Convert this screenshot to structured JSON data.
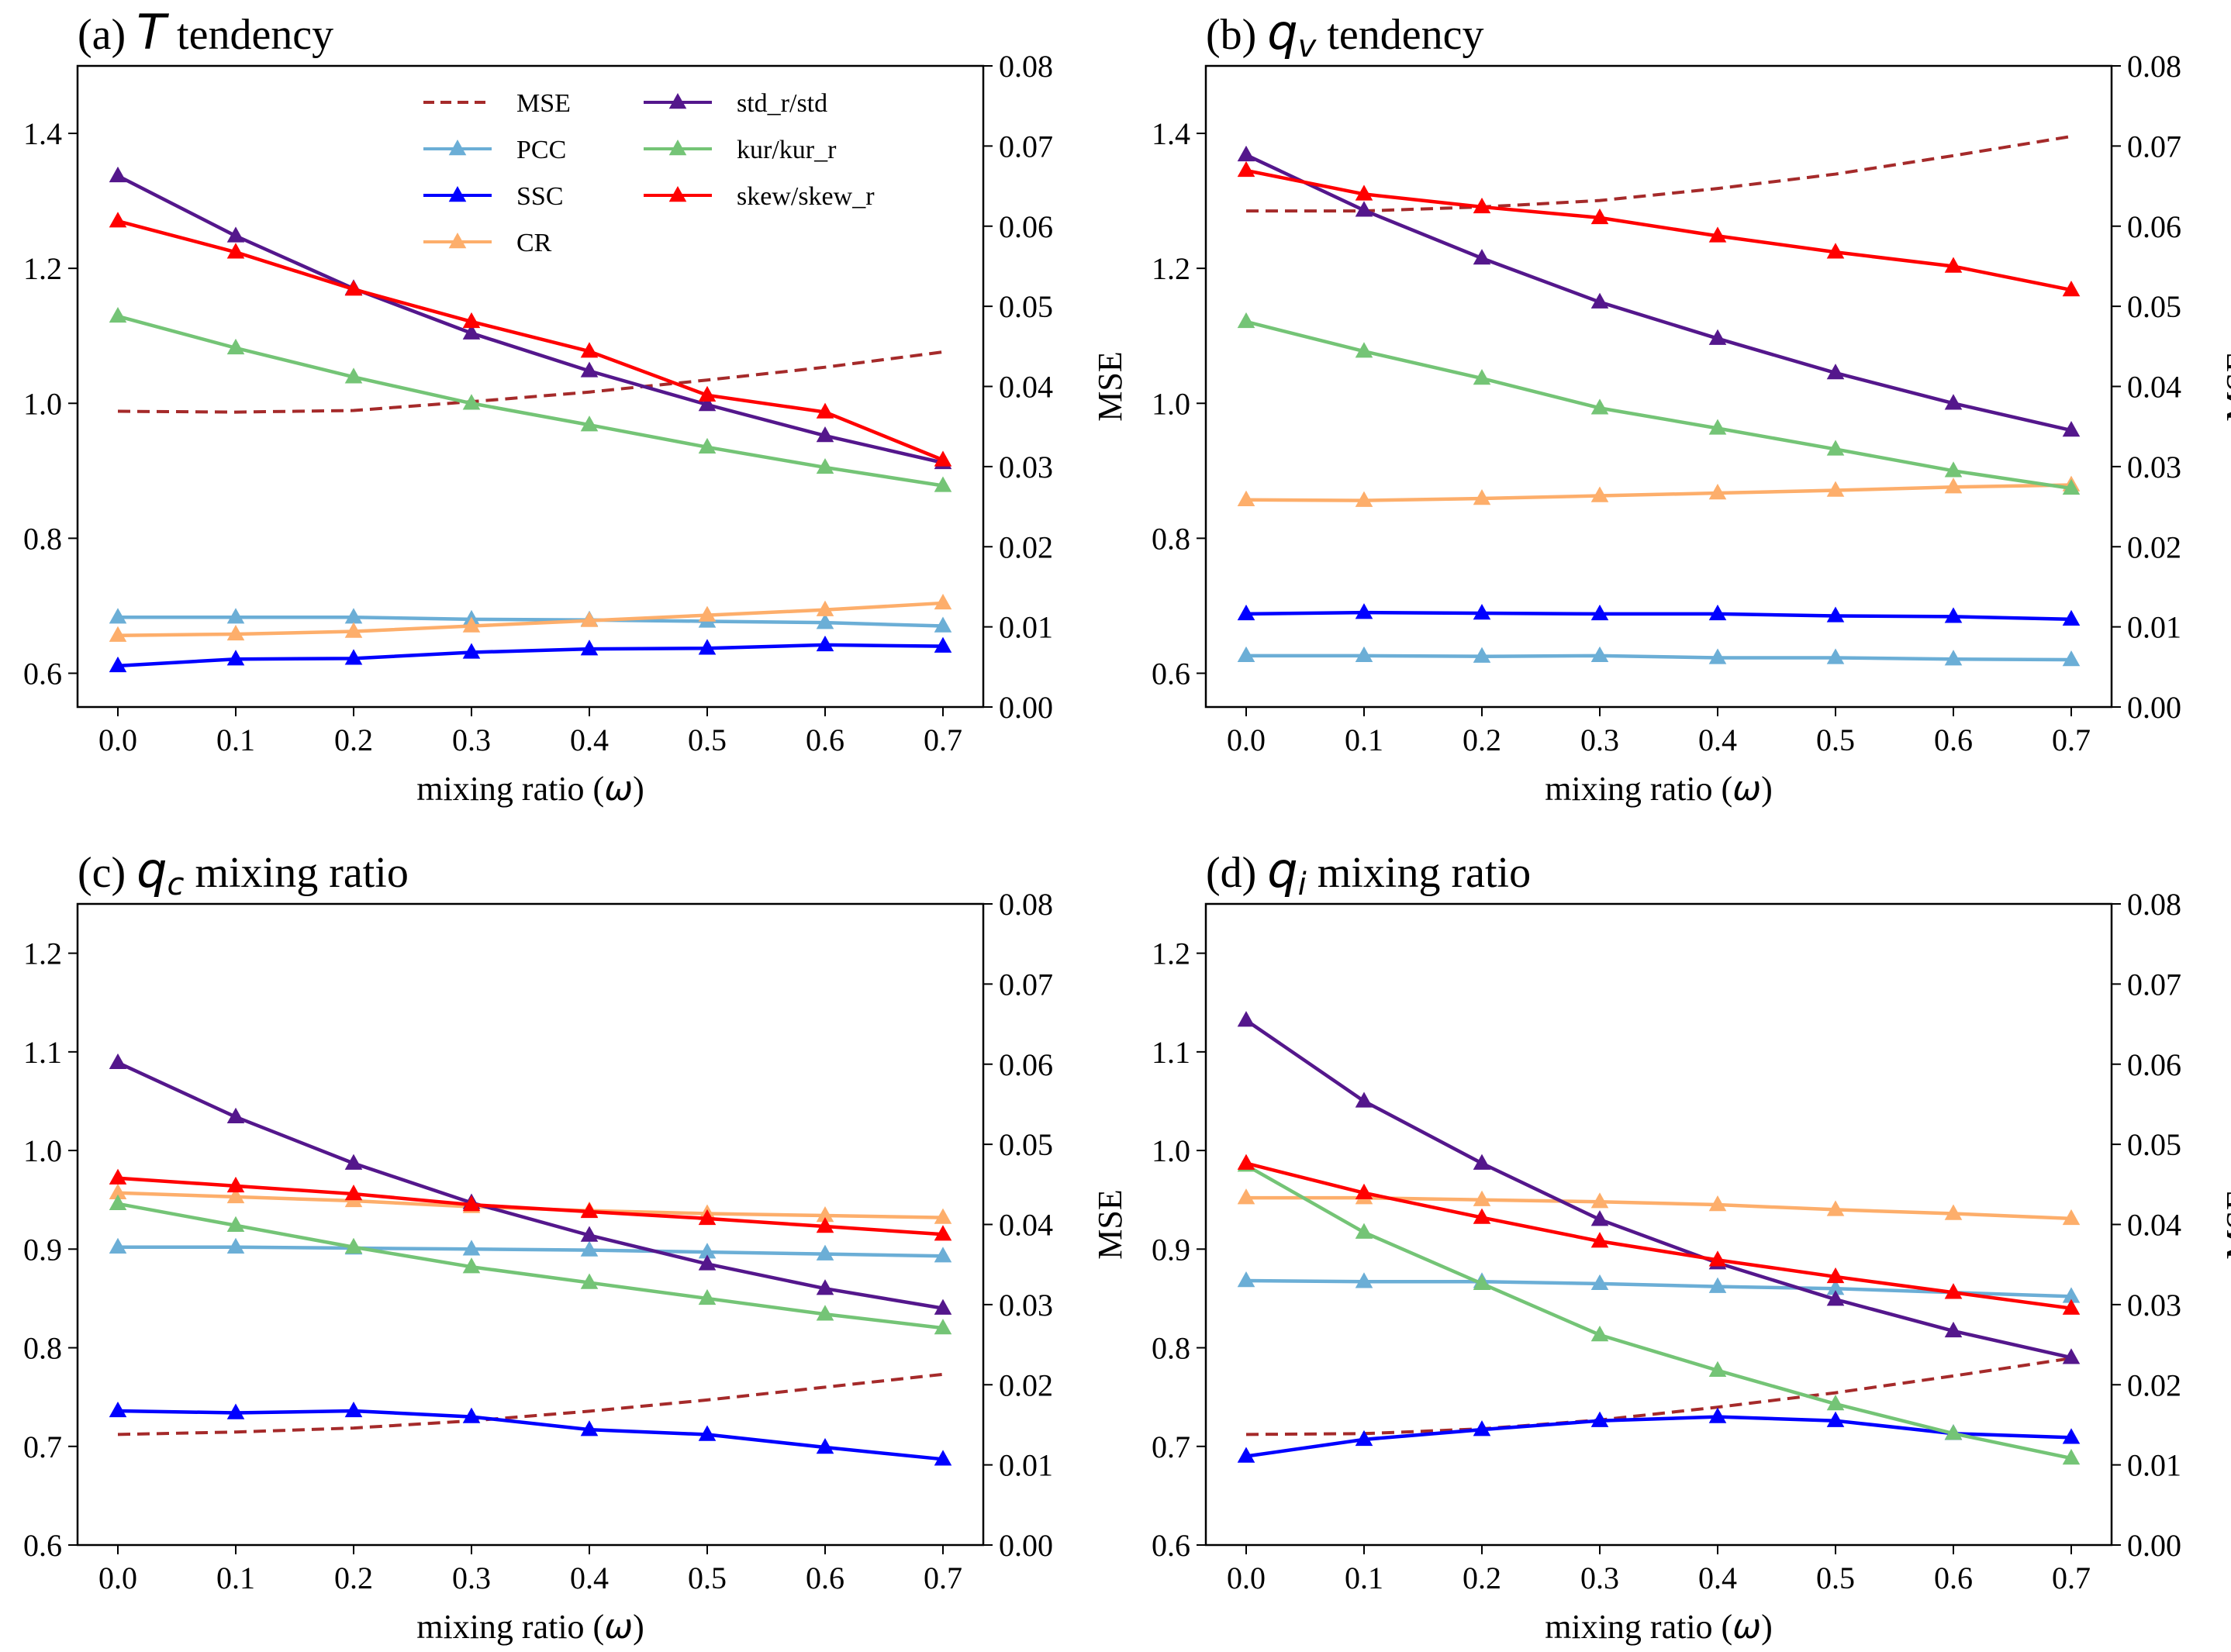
{
  "figure": {
    "legend": [
      {
        "name": "MSE",
        "color": "#a52a2a",
        "dashed": true,
        "marker": false
      },
      {
        "name": "PCC",
        "color": "#6baed6",
        "dashed": false,
        "marker": true
      },
      {
        "name": "SSC",
        "color": "#0000ff",
        "dashed": false,
        "marker": true
      },
      {
        "name": "CR",
        "color": "#fdae6b",
        "dashed": false,
        "marker": true
      },
      {
        "name": "std_r/std",
        "color": "#54178c",
        "dashed": false,
        "marker": true
      },
      {
        "name": "kur/kur_r",
        "color": "#74c476",
        "dashed": false,
        "marker": true
      },
      {
        "name": "skew/skew_r",
        "color": "#ff0000",
        "dashed": false,
        "marker": true
      }
    ]
  },
  "chart_data": [
    {
      "type": "line",
      "panel": "a",
      "title_prefix": "(a) ",
      "title_var": "T",
      "title_sub": "",
      "title_suffix": " tendency",
      "xlabel": "mixing ratio (",
      "xlabel_symbol": "ω",
      "xlabel_close": ")",
      "ylabel_right": "MSE",
      "x": [
        0.0,
        0.1,
        0.2,
        0.3,
        0.4,
        0.5,
        0.6,
        0.7
      ],
      "xticks": [
        "0.0",
        "0.1",
        "0.2",
        "0.3",
        "0.4",
        "0.5",
        "0.6",
        "0.7"
      ],
      "ylim": [
        0.55,
        1.5
      ],
      "yticks": [
        0.6,
        0.8,
        1.0,
        1.2,
        1.4
      ],
      "ytick_labels": [
        "0.6",
        "0.8",
        "1.0",
        "1.2",
        "1.4"
      ],
      "y2lim": [
        0.0,
        0.08
      ],
      "y2ticks": [
        0.0,
        0.01,
        0.02,
        0.03,
        0.04,
        0.05,
        0.06,
        0.07,
        0.08
      ],
      "y2tick_labels": [
        "0.00",
        "0.01",
        "0.02",
        "0.03",
        "0.04",
        "0.05",
        "0.06",
        "0.07",
        "0.08"
      ],
      "show_legend": true,
      "series": [
        {
          "name": "MSE",
          "axis": "right",
          "values": [
            0.0369,
            0.0368,
            0.037,
            0.0381,
            0.0393,
            0.0408,
            0.0424,
            0.0443
          ]
        },
        {
          "name": "PCC",
          "axis": "left",
          "values": [
            0.683,
            0.683,
            0.683,
            0.68,
            0.679,
            0.677,
            0.675,
            0.67
          ]
        },
        {
          "name": "SSC",
          "axis": "left",
          "values": [
            0.611,
            0.621,
            0.622,
            0.631,
            0.636,
            0.637,
            0.642,
            0.64
          ]
        },
        {
          "name": "CR",
          "axis": "left",
          "values": [
            0.656,
            0.658,
            0.662,
            0.67,
            0.678,
            0.686,
            0.694,
            0.704
          ]
        },
        {
          "name": "std_r/std",
          "axis": "left",
          "values": [
            1.337,
            1.248,
            1.17,
            1.104,
            1.048,
            0.998,
            0.952,
            0.912
          ]
        },
        {
          "name": "kur/kur_r",
          "axis": "left",
          "values": [
            1.129,
            1.082,
            1.039,
            1.0,
            0.968,
            0.935,
            0.905,
            0.878
          ]
        },
        {
          "name": "skew/skew_r",
          "axis": "left",
          "values": [
            1.27,
            1.224,
            1.169,
            1.121,
            1.077,
            1.012,
            0.987,
            0.916
          ]
        }
      ]
    },
    {
      "type": "line",
      "panel": "b",
      "title_prefix": "(b) ",
      "title_var": "q",
      "title_sub": "v",
      "title_suffix": " tendency",
      "xlabel": "mixing ratio (",
      "xlabel_symbol": "ω",
      "xlabel_close": ")",
      "ylabel_right": "MSE",
      "x": [
        0.0,
        0.1,
        0.2,
        0.3,
        0.4,
        0.5,
        0.6,
        0.7
      ],
      "xticks": [
        "0.0",
        "0.1",
        "0.2",
        "0.3",
        "0.4",
        "0.5",
        "0.6",
        "0.7"
      ],
      "ylim": [
        0.55,
        1.5
      ],
      "yticks": [
        0.6,
        0.8,
        1.0,
        1.2,
        1.4
      ],
      "ytick_labels": [
        "0.6",
        "0.8",
        "1.0",
        "1.2",
        "1.4"
      ],
      "y2lim": [
        0.0,
        0.08
      ],
      "y2ticks": [
        0.0,
        0.01,
        0.02,
        0.03,
        0.04,
        0.05,
        0.06,
        0.07,
        0.08
      ],
      "y2tick_labels": [
        "0.00",
        "0.01",
        "0.02",
        "0.03",
        "0.04",
        "0.05",
        "0.06",
        "0.07",
        "0.08"
      ],
      "show_legend": false,
      "series": [
        {
          "name": "MSE",
          "axis": "right",
          "values": [
            0.0619,
            0.0619,
            0.0624,
            0.0632,
            0.0647,
            0.0665,
            0.0688,
            0.0712
          ]
        },
        {
          "name": "PCC",
          "axis": "left",
          "values": [
            0.626,
            0.626,
            0.625,
            0.626,
            0.623,
            0.623,
            0.621,
            0.62
          ]
        },
        {
          "name": "SSC",
          "axis": "left",
          "values": [
            0.688,
            0.69,
            0.689,
            0.688,
            0.688,
            0.685,
            0.684,
            0.68
          ]
        },
        {
          "name": "CR",
          "axis": "left",
          "values": [
            0.857,
            0.856,
            0.859,
            0.863,
            0.867,
            0.871,
            0.876,
            0.879
          ]
        },
        {
          "name": "std_r/std",
          "axis": "left",
          "values": [
            1.368,
            1.286,
            1.215,
            1.15,
            1.096,
            1.045,
            1.0,
            0.96
          ]
        },
        {
          "name": "kur/kur_r",
          "axis": "left",
          "values": [
            1.121,
            1.077,
            1.037,
            0.993,
            0.963,
            0.932,
            0.9,
            0.874
          ]
        },
        {
          "name": "skew/skew_r",
          "axis": "left",
          "values": [
            1.345,
            1.31,
            1.291,
            1.275,
            1.248,
            1.224,
            1.203,
            1.168
          ]
        }
      ]
    },
    {
      "type": "line",
      "panel": "c",
      "title_prefix": "(c) ",
      "title_var": "q",
      "title_sub": "c",
      "title_suffix": " mixing ratio",
      "xlabel": "mixing ratio (",
      "xlabel_symbol": "ω",
      "xlabel_close": ")",
      "ylabel_right": "MSE",
      "x": [
        0.0,
        0.1,
        0.2,
        0.3,
        0.4,
        0.5,
        0.6,
        0.7
      ],
      "xticks": [
        "0.0",
        "0.1",
        "0.2",
        "0.3",
        "0.4",
        "0.5",
        "0.6",
        "0.7"
      ],
      "ylim": [
        0.6,
        1.25
      ],
      "yticks": [
        0.6,
        0.7,
        0.8,
        0.9,
        1.0,
        1.1,
        1.2
      ],
      "ytick_labels": [
        "0.6",
        "0.7",
        "0.8",
        "0.9",
        "1.0",
        "1.1",
        "1.2"
      ],
      "y2lim": [
        0.0,
        0.08
      ],
      "y2ticks": [
        0.0,
        0.01,
        0.02,
        0.03,
        0.04,
        0.05,
        0.06,
        0.07,
        0.08
      ],
      "y2tick_labels": [
        "0.00",
        "0.01",
        "0.02",
        "0.03",
        "0.04",
        "0.05",
        "0.06",
        "0.07",
        "0.08"
      ],
      "show_legend": false,
      "series": [
        {
          "name": "MSE",
          "axis": "right",
          "values": [
            0.0138,
            0.0141,
            0.0146,
            0.0155,
            0.0167,
            0.0181,
            0.0197,
            0.0213
          ]
        },
        {
          "name": "PCC",
          "axis": "left",
          "values": [
            0.902,
            0.902,
            0.901,
            0.9,
            0.899,
            0.897,
            0.895,
            0.893
          ]
        },
        {
          "name": "SSC",
          "axis": "left",
          "values": [
            0.736,
            0.734,
            0.736,
            0.73,
            0.717,
            0.712,
            0.699,
            0.687
          ]
        },
        {
          "name": "CR",
          "axis": "left",
          "values": [
            0.957,
            0.953,
            0.949,
            0.943,
            0.939,
            0.936,
            0.934,
            0.932
          ]
        },
        {
          "name": "std_r/std",
          "axis": "left",
          "values": [
            1.089,
            1.034,
            0.987,
            0.947,
            0.914,
            0.885,
            0.86,
            0.84
          ]
        },
        {
          "name": "kur/kur_r",
          "axis": "left",
          "values": [
            0.946,
            0.924,
            0.902,
            0.882,
            0.866,
            0.85,
            0.834,
            0.82
          ]
        },
        {
          "name": "skew/skew_r",
          "axis": "left",
          "values": [
            0.972,
            0.964,
            0.956,
            0.945,
            0.938,
            0.931,
            0.923,
            0.915
          ]
        }
      ]
    },
    {
      "type": "line",
      "panel": "d",
      "title_prefix": "(d) ",
      "title_var": "q",
      "title_sub": "i",
      "title_suffix": " mixing ratio",
      "xlabel": "mixing ratio (",
      "xlabel_symbol": "ω",
      "xlabel_close": ")",
      "ylabel_right": "MSE",
      "x": [
        0.0,
        0.1,
        0.2,
        0.3,
        0.4,
        0.5,
        0.6,
        0.7
      ],
      "xticks": [
        "0.0",
        "0.1",
        "0.2",
        "0.3",
        "0.4",
        "0.5",
        "0.6",
        "0.7"
      ],
      "ylim": [
        0.6,
        1.25
      ],
      "yticks": [
        0.6,
        0.7,
        0.8,
        0.9,
        1.0,
        1.1,
        1.2
      ],
      "ytick_labels": [
        "0.6",
        "0.7",
        "0.8",
        "0.9",
        "1.0",
        "1.1",
        "1.2"
      ],
      "y2lim": [
        0.0,
        0.08
      ],
      "y2ticks": [
        0.0,
        0.01,
        0.02,
        0.03,
        0.04,
        0.05,
        0.06,
        0.07,
        0.08
      ],
      "y2tick_labels": [
        "0.00",
        "0.01",
        "0.02",
        "0.03",
        "0.04",
        "0.05",
        "0.06",
        "0.07",
        "0.08"
      ],
      "show_legend": false,
      "series": [
        {
          "name": "MSE",
          "axis": "right",
          "values": [
            0.0138,
            0.0139,
            0.0145,
            0.0156,
            0.0172,
            0.019,
            0.0211,
            0.0233
          ]
        },
        {
          "name": "PCC",
          "axis": "left",
          "values": [
            0.868,
            0.867,
            0.867,
            0.865,
            0.862,
            0.86,
            0.856,
            0.852
          ]
        },
        {
          "name": "SSC",
          "axis": "left",
          "values": [
            0.69,
            0.707,
            0.717,
            0.726,
            0.73,
            0.726,
            0.713,
            0.709
          ]
        },
        {
          "name": "CR",
          "axis": "left",
          "values": [
            0.952,
            0.952,
            0.95,
            0.948,
            0.945,
            0.94,
            0.936,
            0.931
          ]
        },
        {
          "name": "std_r/std",
          "axis": "left",
          "values": [
            1.132,
            1.05,
            0.987,
            0.93,
            0.886,
            0.849,
            0.817,
            0.79
          ]
        },
        {
          "name": "kur/kur_r",
          "axis": "left",
          "values": [
            0.985,
            0.917,
            0.865,
            0.813,
            0.777,
            0.743,
            0.713,
            0.688
          ]
        },
        {
          "name": "skew/skew_r",
          "axis": "left",
          "values": [
            0.987,
            0.957,
            0.932,
            0.908,
            0.889,
            0.872,
            0.856,
            0.84
          ]
        }
      ]
    }
  ]
}
